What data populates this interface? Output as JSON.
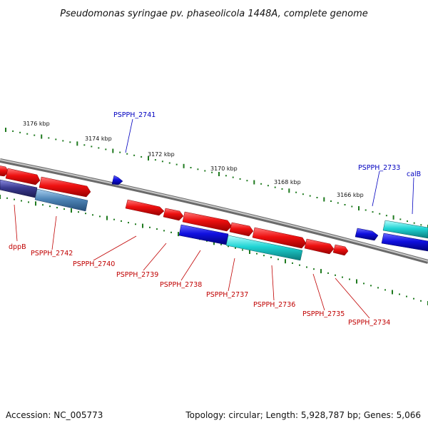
{
  "title": "Pseudomonas syringae pv. phaseolicola 1448A, complete genome",
  "scale_labels": [
    "3176 kbp",
    "3174 kbp",
    "3172 kbp",
    "3170 kbp",
    "3168 kbp",
    "3166 kbp"
  ],
  "gene_labels": {
    "top": [
      "PSPPH_2741",
      "PSPPH_2733",
      "calB"
    ],
    "bottom": [
      "dppB",
      "PSPPH_2742",
      "PSPPH_2740",
      "PSPPH_2739",
      "PSPPH_2738",
      "PSPPH_2737",
      "PSPPH_2736",
      "PSPPH_2735",
      "PSPPH_2734"
    ]
  },
  "footer": {
    "accession": "Accession: NC_005773",
    "summary": "Topology: circular; Length: 5,928,787 bp; Genes: 5,066"
  },
  "colors": {
    "backbone": "#8c8c8c",
    "tick": "#1f7a1f",
    "gene_red": "#e01010",
    "gene_blue": "#1010e0",
    "gene_cyan": "#20d0d0",
    "gene_steel": "#4f86b8",
    "gene_indigo": "#3a3a90",
    "label_blue": "#0000c0",
    "label_red": "#c00000"
  }
}
